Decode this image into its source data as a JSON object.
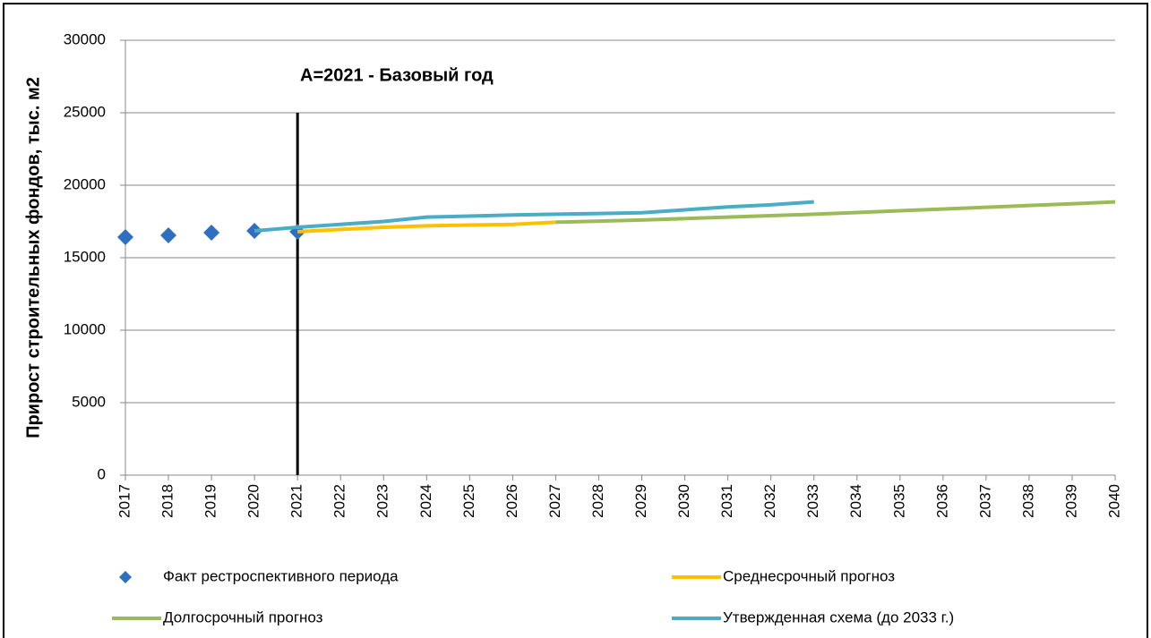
{
  "chart_data": {
    "type": "line",
    "y_label": "Прирост строительных фондов, тыс. м2",
    "annotation": {
      "text": "А=2021 - Базовый год",
      "x": "2021",
      "y_top": 25000
    },
    "categories": [
      "2017",
      "2018",
      "2019",
      "2020",
      "2021",
      "2022",
      "2023",
      "2024",
      "2025",
      "2026",
      "2027",
      "2028",
      "2029",
      "2030",
      "2031",
      "2032",
      "2033",
      "2034",
      "2035",
      "2036",
      "2037",
      "2038",
      "2039",
      "2040"
    ],
    "ylim": [
      0,
      30000
    ],
    "yticks": [
      0,
      5000,
      10000,
      15000,
      20000,
      25000,
      30000
    ],
    "grid": true,
    "series": [
      {
        "name": "Факт рестроспективного периода",
        "color": "#2f6fbf",
        "marker": "diamond",
        "values": [
          16420,
          16540,
          16730,
          16850,
          16790,
          null,
          null,
          null,
          null,
          null,
          null,
          null,
          null,
          null,
          null,
          null,
          null,
          null,
          null,
          null,
          null,
          null,
          null,
          null
        ]
      },
      {
        "name": "Среднесрочный прогноз",
        "color": "#ffc000",
        "values": [
          null,
          null,
          null,
          null,
          16800,
          16950,
          17100,
          17200,
          17250,
          17300,
          17450,
          null,
          null,
          null,
          null,
          null,
          null,
          null,
          null,
          null,
          null,
          null,
          null,
          null
        ]
      },
      {
        "name": "Долгосрочный прогноз",
        "color": "#9bbb59",
        "values": [
          null,
          null,
          null,
          null,
          null,
          null,
          null,
          null,
          null,
          null,
          17450,
          17520,
          17600,
          17700,
          17800,
          17900,
          18000,
          18120,
          18240,
          18360,
          18480,
          18600,
          18720,
          18850
        ]
      },
      {
        "name": "Утвержденная схема (до 2033 г.)",
        "color": "#4bacc6",
        "values": [
          null,
          null,
          null,
          16850,
          17100,
          17300,
          17500,
          17800,
          17870,
          17950,
          18000,
          18050,
          18100,
          18300,
          18500,
          18650,
          18850,
          null,
          null,
          null,
          null,
          null,
          null,
          null
        ]
      }
    ]
  }
}
